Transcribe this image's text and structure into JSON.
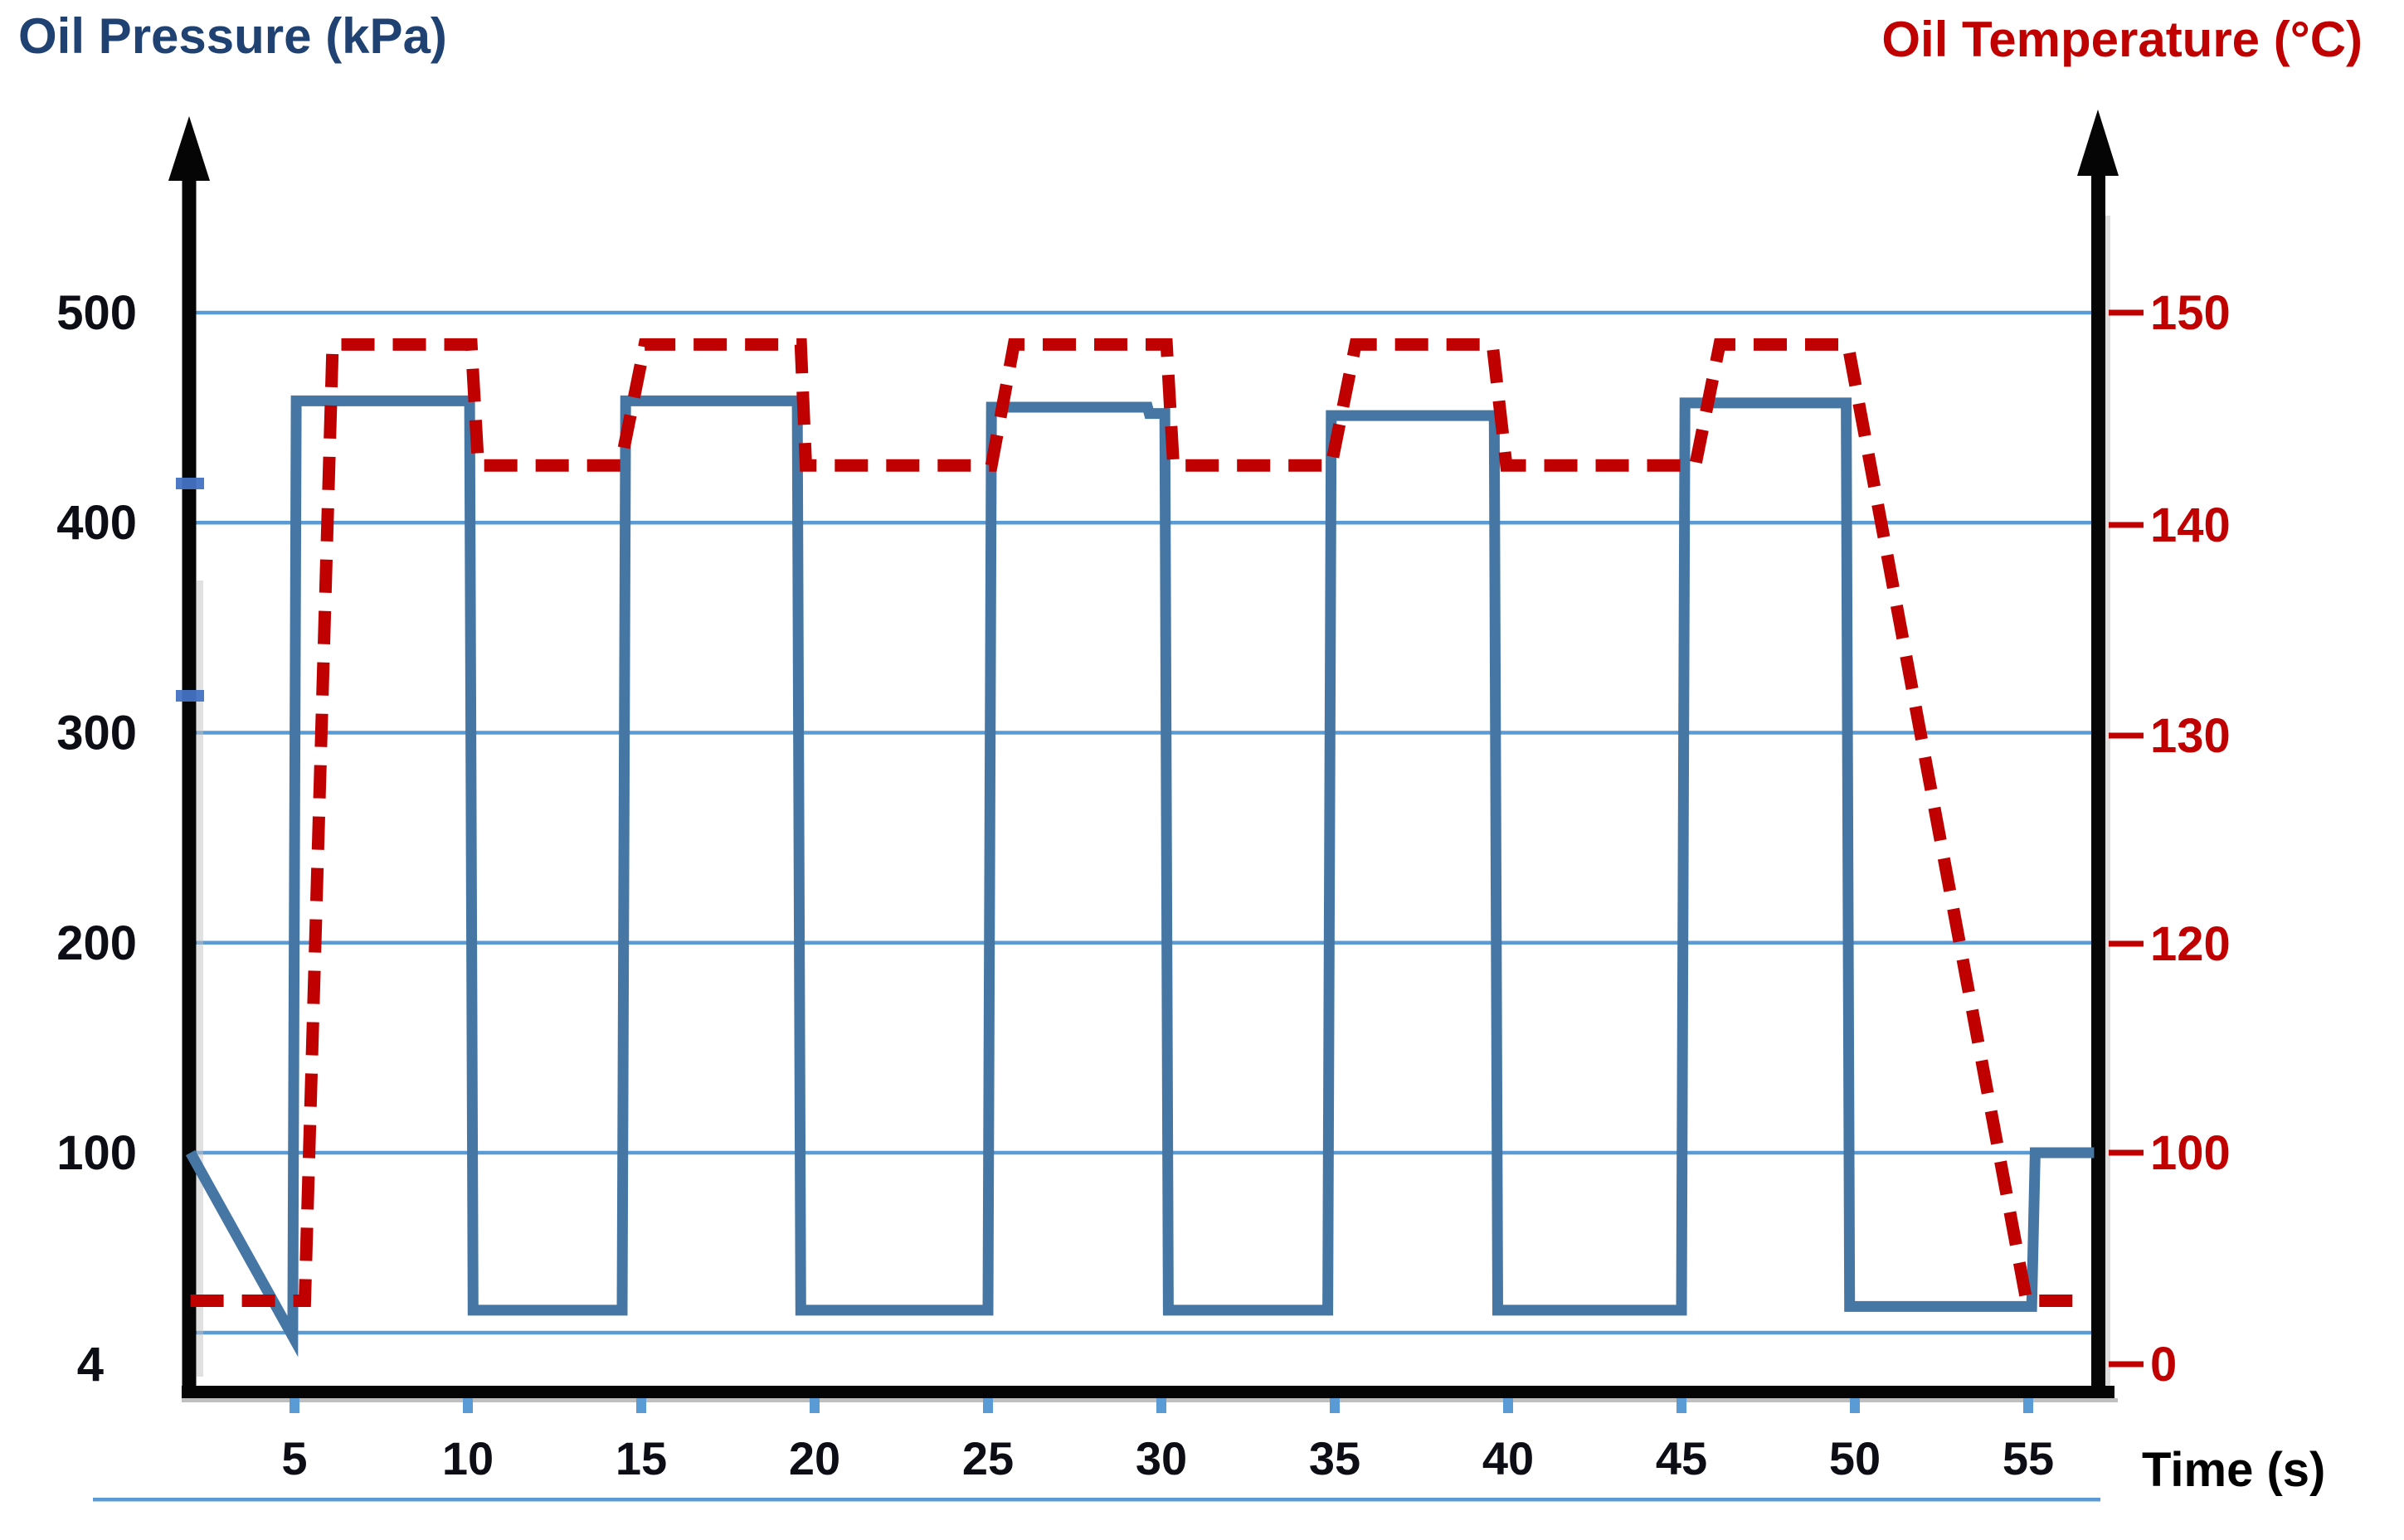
{
  "chart_data": {
    "type": "line",
    "title": "",
    "x": {
      "label": "Time (s)",
      "ticks": [
        5,
        10,
        15,
        20,
        25,
        30,
        35,
        40,
        45,
        50,
        55
      ],
      "range": [
        2,
        57
      ]
    },
    "y_left": {
      "label": "Oil Pressure (kPa)",
      "ticks": [
        4,
        100,
        200,
        300,
        400,
        500
      ],
      "range": [
        4,
        560
      ],
      "color": "#1F4272"
    },
    "y_right": {
      "label": "Oil Temperature (°C)",
      "ticks": [
        0,
        100,
        120,
        130,
        140,
        150
      ],
      "range": [
        0,
        155
      ],
      "color": "#C00000"
    },
    "grid": true,
    "legend": false,
    "series": [
      {
        "name": "Oil Pressure",
        "axis": "left",
        "unit": "kPa",
        "color": "#4677A4",
        "style": "solid",
        "points": [
          [
            2.0,
            100
          ],
          [
            4.95,
            2
          ],
          [
            5.05,
            458
          ],
          [
            10.05,
            458
          ],
          [
            10.15,
            16
          ],
          [
            14.45,
            16
          ],
          [
            14.55,
            458
          ],
          [
            19.5,
            458
          ],
          [
            19.6,
            16
          ],
          [
            25.0,
            16
          ],
          [
            25.1,
            455
          ],
          [
            29.6,
            455
          ],
          [
            29.65,
            452
          ],
          [
            30.1,
            452
          ],
          [
            30.2,
            16
          ],
          [
            34.8,
            16
          ],
          [
            34.9,
            451
          ],
          [
            39.6,
            451
          ],
          [
            39.7,
            16
          ],
          [
            45.0,
            16
          ],
          [
            45.1,
            457
          ],
          [
            49.75,
            457
          ],
          [
            49.85,
            18
          ],
          [
            55.1,
            18
          ],
          [
            55.2,
            100
          ],
          [
            56.9,
            100
          ]
        ]
      },
      {
        "name": "Oil Temperature",
        "axis": "right",
        "unit": "°C",
        "color": "#C00000",
        "style": "dashed",
        "points": [
          [
            2.0,
            30
          ],
          [
            5.3,
            30
          ],
          [
            6.1,
            148.5
          ],
          [
            10.1,
            148.5
          ],
          [
            10.3,
            142.8
          ],
          [
            14.4,
            142.8
          ],
          [
            15.1,
            148.5
          ],
          [
            19.6,
            148.5
          ],
          [
            19.75,
            142.8
          ],
          [
            25.1,
            142.8
          ],
          [
            25.75,
            148.5
          ],
          [
            30.15,
            148.5
          ],
          [
            30.35,
            142.8
          ],
          [
            34.9,
            142.8
          ],
          [
            35.6,
            148.5
          ],
          [
            39.55,
            148.5
          ],
          [
            39.95,
            142.8
          ],
          [
            45.4,
            142.8
          ],
          [
            46.1,
            148.5
          ],
          [
            49.8,
            148.5
          ],
          [
            54.95,
            30
          ],
          [
            56.7,
            30
          ]
        ]
      }
    ]
  },
  "colors": {
    "grid": "#5B9BD5",
    "x_tick": "#5B9BD5",
    "axis": "#050505",
    "tick_text": "#0d0d15",
    "left_title": "#1F4272",
    "right_title": "#C00000",
    "pressure": "#4677A4",
    "temperature": "#C00000"
  }
}
